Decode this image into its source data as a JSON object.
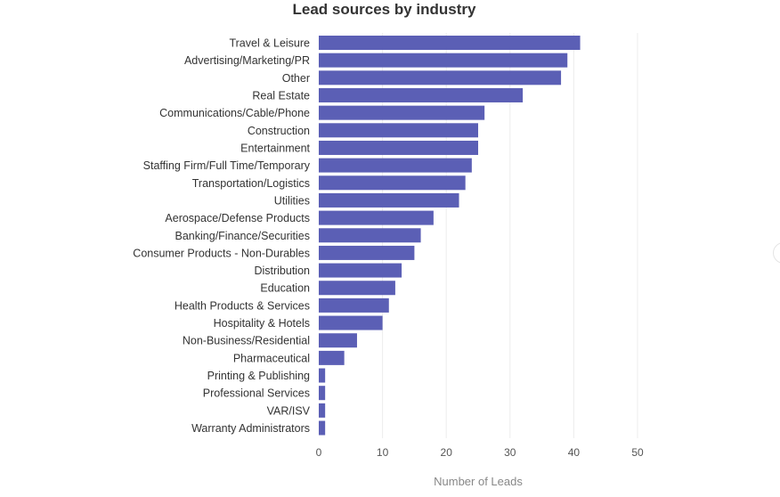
{
  "chart_data": {
    "type": "bar",
    "orientation": "horizontal",
    "title": "Lead sources by industry",
    "xlabel": "Number of Leads",
    "ylabel": "",
    "xlim": [
      0,
      50
    ],
    "xticks": [
      0,
      10,
      20,
      30,
      40,
      50
    ],
    "grid": true,
    "bar_color": "#5b5fb5",
    "categories": [
      "Travel & Leisure",
      "Advertising/Marketing/PR",
      "Other",
      "Real Estate",
      "Communications/Cable/Phone",
      "Construction",
      "Entertainment",
      "Staffing Firm/Full Time/Temporary",
      "Transportation/Logistics",
      "Utilities",
      "Aerospace/Defense Products",
      "Banking/Finance/Securities",
      "Consumer Products - Non-Durables",
      "Distribution",
      "Education",
      "Health Products & Services",
      "Hospitality & Hotels",
      "Non-Business/Residential",
      "Pharmaceutical",
      "Printing & Publishing",
      "Professional Services",
      "VAR/ISV",
      "Warranty Administrators"
    ],
    "values": [
      41,
      39,
      38,
      32,
      26,
      25,
      25,
      24,
      23,
      22,
      18,
      16,
      15,
      13,
      12,
      11,
      10,
      6,
      4,
      1,
      1,
      1,
      1
    ]
  }
}
